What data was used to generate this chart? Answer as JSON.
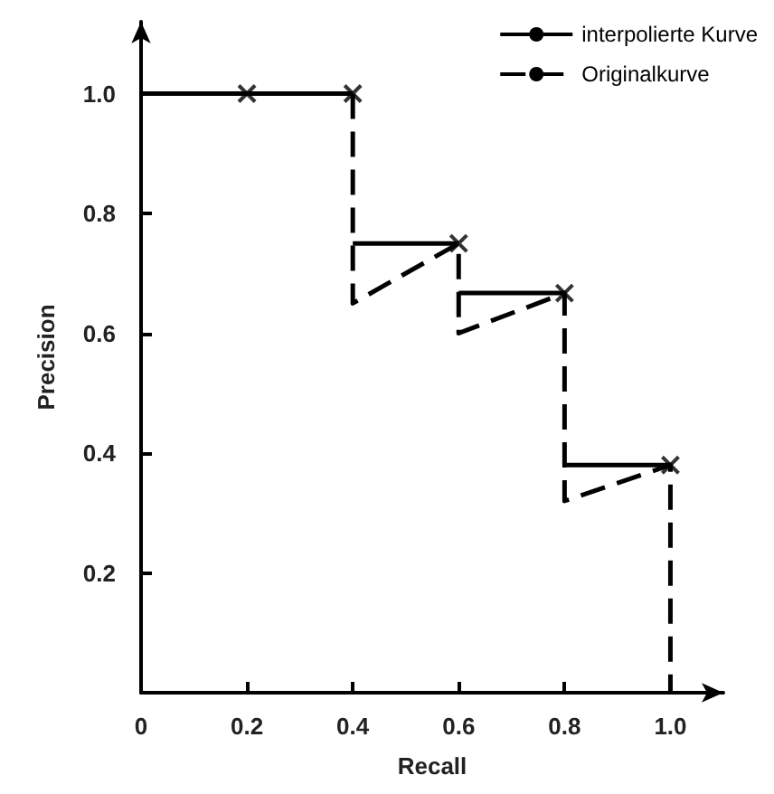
{
  "chart_data": {
    "type": "line",
    "xlabel": "Recall",
    "ylabel": "Precision",
    "xlim": [
      0,
      1.1
    ],
    "ylim": [
      0,
      1.12
    ],
    "xticks": [
      0,
      0.2,
      0.4,
      0.6,
      0.8,
      {
        "value": 1,
        "label": "1.0"
      }
    ],
    "yticks": [
      0.2,
      0.4,
      0.6,
      0.8,
      {
        "value": 1,
        "label": "1.0"
      }
    ],
    "grid": false,
    "legend": "top right",
    "marker": "none",
    "series": [
      {
        "name": "interpolierte Kurve",
        "color": "#000000",
        "line_style": "solid",
        "x": [
          0,
          0.4,
          null,
          0.4,
          0.6,
          null,
          0.6,
          0.8,
          null,
          0.8,
          1.0
        ],
        "values": [
          1.0,
          1.0,
          null,
          0.75,
          0.75,
          null,
          0.667,
          0.667,
          null,
          0.38,
          0.38
        ]
      },
      {
        "name": "Originalkurve",
        "color": "#000000",
        "line_style": "dashed",
        "x": [
          0.4,
          0.4,
          0.6,
          0.6,
          0.8,
          0.8,
          1.0,
          1.0
        ],
        "values": [
          1.0,
          0.65,
          0.75,
          0.6,
          0.667,
          0.32,
          0.38,
          0
        ]
      },
      {
        "type": "scatter",
        "marker": "cross",
        "color": "#000000",
        "x": [
          0.2,
          0.4,
          0.6,
          0.8,
          1.0
        ],
        "values": [
          1.0,
          1.0,
          0.75,
          0.667,
          0.38
        ]
      }
    ]
  }
}
